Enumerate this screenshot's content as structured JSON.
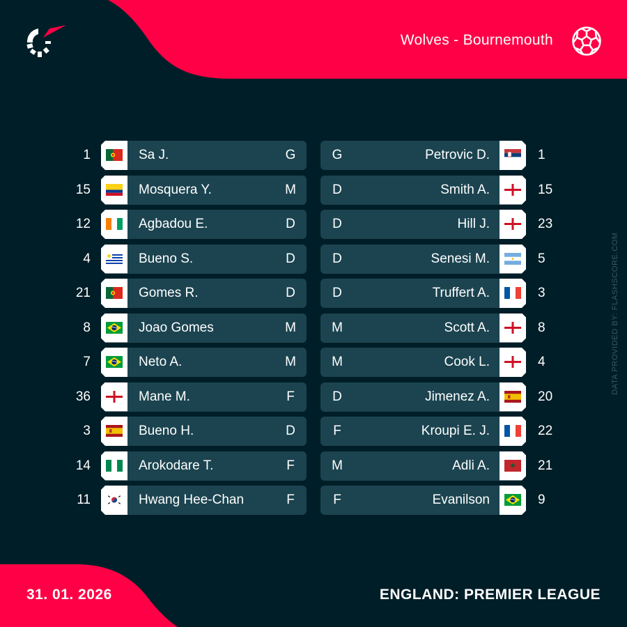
{
  "header": {
    "match_title": "Wolves - Bournemouth",
    "logo_icon": "flashscore-logo-icon",
    "sport_icon": "soccer-ball-icon"
  },
  "colors": {
    "background": "#001e28",
    "accent_red": "#ff0046",
    "card": "#1b4450",
    "flag_box": "#ffffff",
    "credit_text": "#3d5660"
  },
  "home": {
    "team": "Wolves",
    "players": [
      {
        "number": "1",
        "name": "Sa J.",
        "position": "G",
        "flag": "portugal"
      },
      {
        "number": "15",
        "name": "Mosquera Y.",
        "position": "M",
        "flag": "colombia"
      },
      {
        "number": "12",
        "name": "Agbadou E.",
        "position": "D",
        "flag": "ivory-coast"
      },
      {
        "number": "4",
        "name": "Bueno S.",
        "position": "D",
        "flag": "uruguay"
      },
      {
        "number": "21",
        "name": "Gomes R.",
        "position": "D",
        "flag": "portugal"
      },
      {
        "number": "8",
        "name": "Joao Gomes",
        "position": "M",
        "flag": "brazil"
      },
      {
        "number": "7",
        "name": "Neto A.",
        "position": "M",
        "flag": "brazil"
      },
      {
        "number": "36",
        "name": "Mane M.",
        "position": "F",
        "flag": "england"
      },
      {
        "number": "3",
        "name": "Bueno H.",
        "position": "D",
        "flag": "spain"
      },
      {
        "number": "14",
        "name": "Arokodare T.",
        "position": "F",
        "flag": "nigeria"
      },
      {
        "number": "11",
        "name": "Hwang Hee-Chan",
        "position": "F",
        "flag": "south-korea"
      }
    ]
  },
  "away": {
    "team": "Bournemouth",
    "players": [
      {
        "number": "1",
        "name": "Petrovic D.",
        "position": "G",
        "flag": "serbia"
      },
      {
        "number": "15",
        "name": "Smith A.",
        "position": "D",
        "flag": "england"
      },
      {
        "number": "23",
        "name": "Hill J.",
        "position": "D",
        "flag": "england"
      },
      {
        "number": "5",
        "name": "Senesi M.",
        "position": "D",
        "flag": "argentina"
      },
      {
        "number": "3",
        "name": "Truffert A.",
        "position": "D",
        "flag": "france"
      },
      {
        "number": "8",
        "name": "Scott A.",
        "position": "M",
        "flag": "england"
      },
      {
        "number": "4",
        "name": "Cook L.",
        "position": "M",
        "flag": "england"
      },
      {
        "number": "20",
        "name": "Jimenez A.",
        "position": "D",
        "flag": "spain"
      },
      {
        "number": "22",
        "name": "Kroupi E. J.",
        "position": "F",
        "flag": "france"
      },
      {
        "number": "21",
        "name": "Adli A.",
        "position": "M",
        "flag": "morocco"
      },
      {
        "number": "9",
        "name": "Evanilson",
        "position": "F",
        "flag": "brazil"
      }
    ]
  },
  "footer": {
    "date": "31. 01. 2026",
    "league": "ENGLAND: PREMIER LEAGUE"
  },
  "credit": "DATA PROVIDED BY: FLASHSCORE.COM"
}
